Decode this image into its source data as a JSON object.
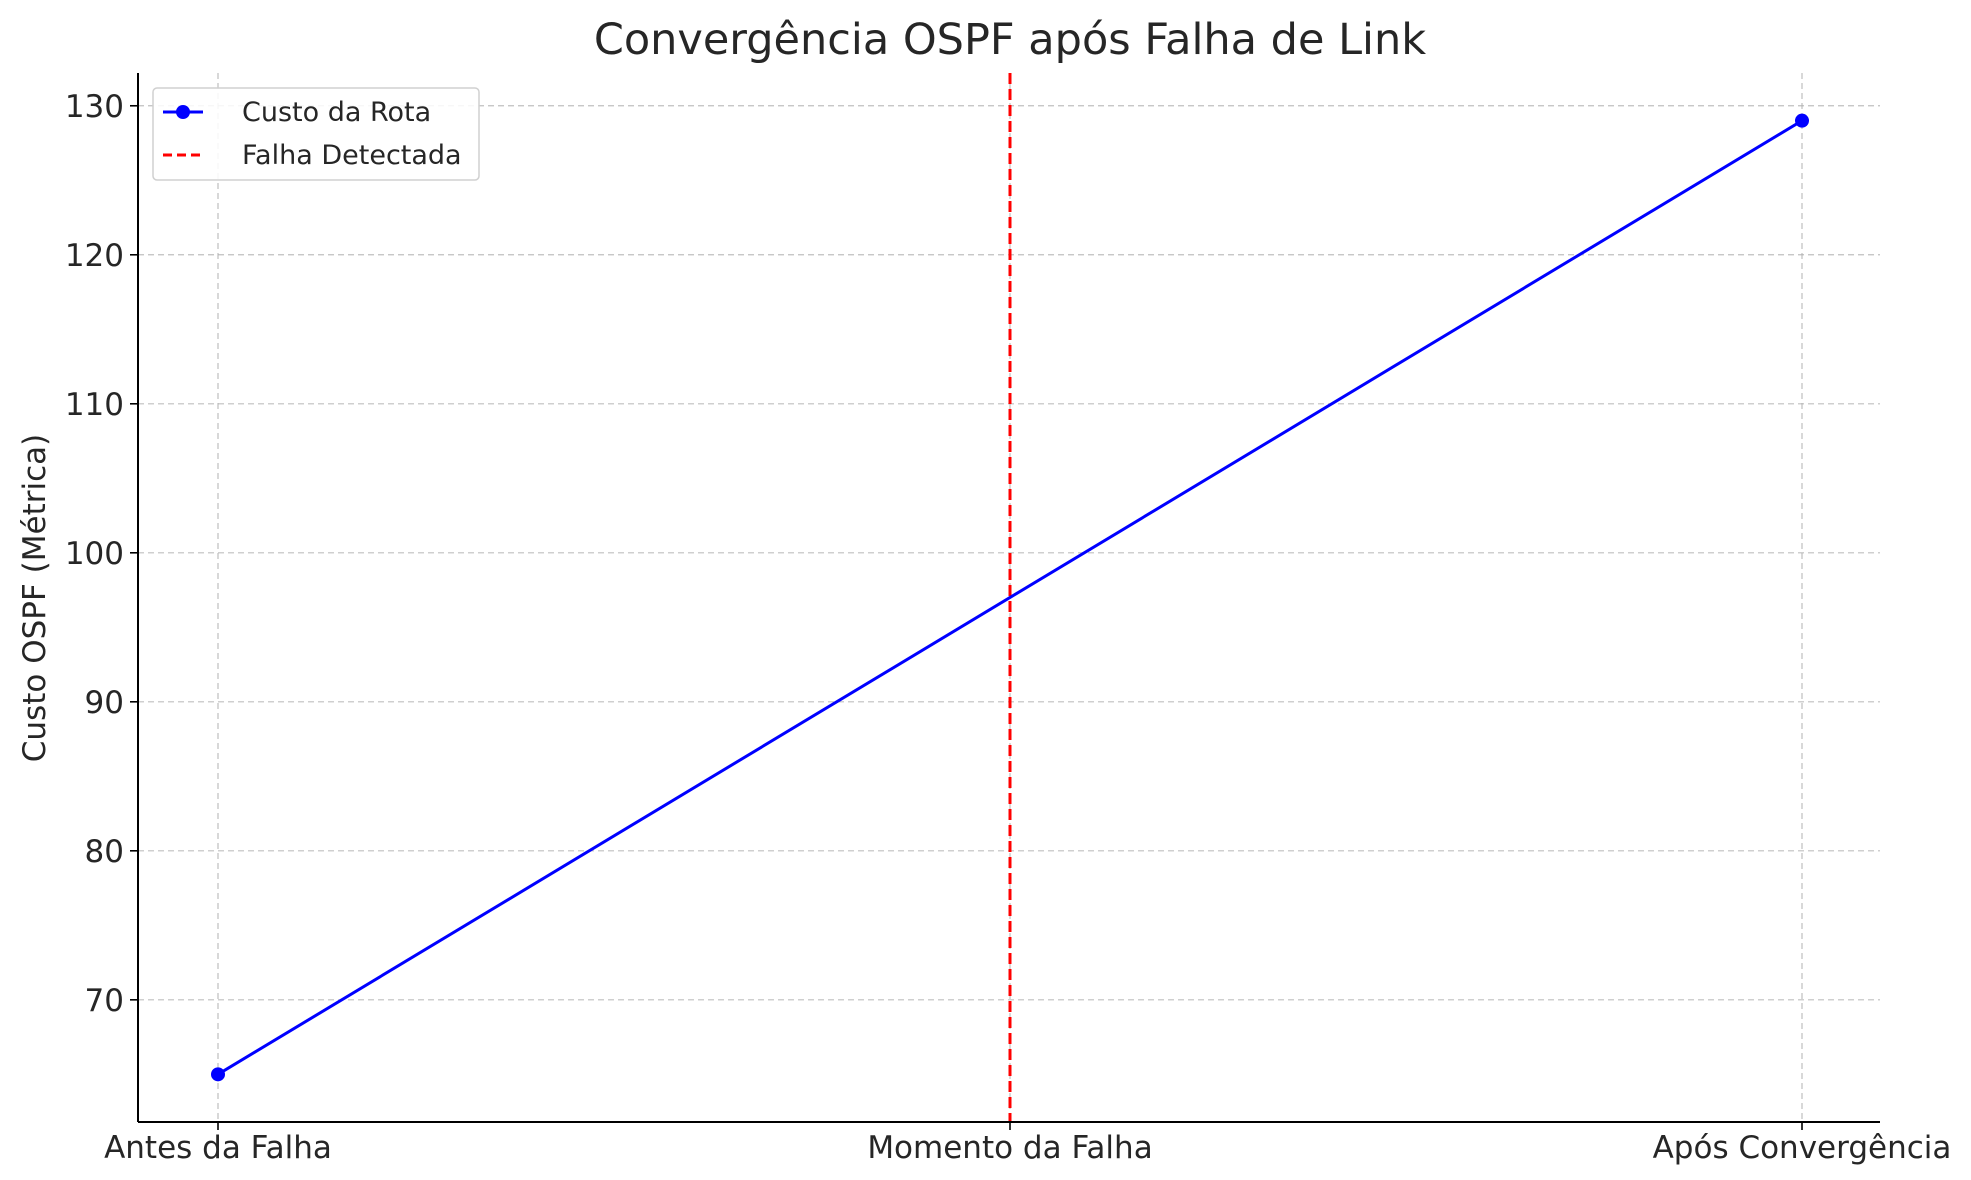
{
  "chart_data": {
    "type": "line",
    "title": "Convergência OSPF após Falha de Link",
    "xlabel": "",
    "ylabel": "Custo OSPF (Métrica)",
    "categories": [
      "Antes da Falha",
      "Momento da Falha",
      "Após Convergência"
    ],
    "series": [
      {
        "name": "Custo da Rota",
        "x": [
          "Antes da Falha",
          "Após Convergência"
        ],
        "values": [
          65,
          129
        ],
        "color": "#0000ff",
        "marker": "circle"
      }
    ],
    "annotations": [
      {
        "type": "vline",
        "name": "Falha Detectada",
        "x": "Momento da Falha",
        "color": "#ff0000",
        "style": "dashed"
      }
    ],
    "yticks": [
      70,
      80,
      90,
      100,
      110,
      120,
      130
    ],
    "ylim": [
      61.8,
      132.2
    ],
    "grid": true,
    "legend_position": "top-left"
  }
}
